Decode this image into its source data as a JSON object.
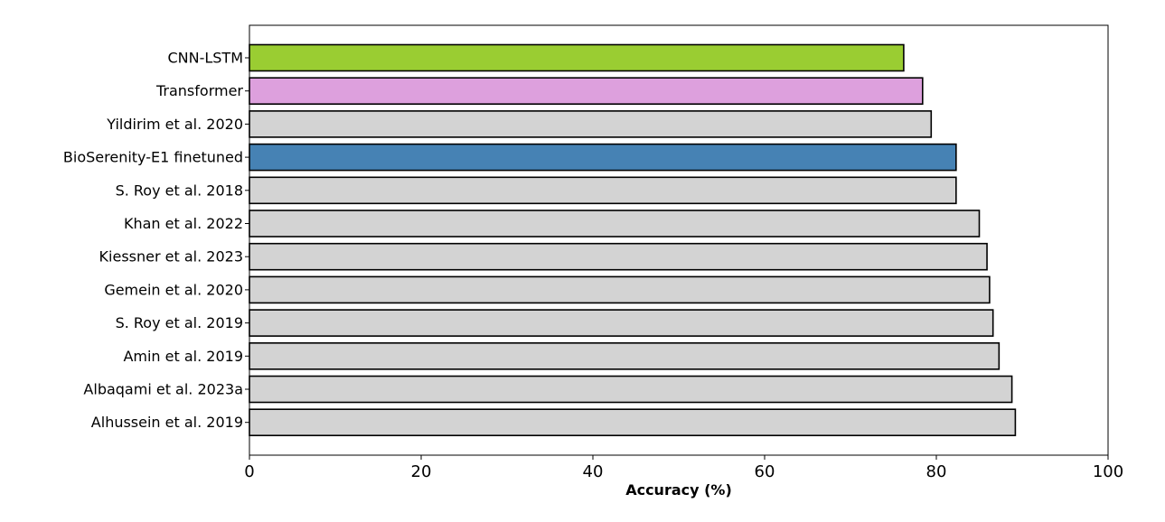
{
  "chart_data": {
    "type": "bar",
    "orientation": "horizontal",
    "title": "",
    "xlabel": "Accuracy (%)",
    "ylabel": "",
    "xlim": [
      0,
      100
    ],
    "x_ticks": [
      0,
      20,
      40,
      60,
      80,
      100
    ],
    "grid": false,
    "legend": "none",
    "categories": [
      "CNN-LSTM",
      "Transformer",
      "Yildirim et al. 2020",
      "BioSerenity-E1 finetuned",
      "S. Roy et al. 2018",
      "Khan et al. 2022",
      "Kiessner et al. 2023",
      "Gemein et al. 2020",
      "S. Roy et al. 2019",
      "Amin et al. 2019",
      "Albaqami et al. 2023a",
      "Alhussein et al. 2019"
    ],
    "values": [
      76.2,
      78.4,
      79.4,
      82.3,
      82.3,
      85.0,
      85.9,
      86.2,
      86.6,
      87.3,
      88.8,
      89.2
    ],
    "bar_colors": [
      "#9acd32",
      "#dda0dd",
      "#d3d3d3",
      "#4682b4",
      "#d3d3d3",
      "#d3d3d3",
      "#d3d3d3",
      "#d3d3d3",
      "#d3d3d3",
      "#d3d3d3",
      "#d3d3d3",
      "#d3d3d3"
    ],
    "bar_edge_color": "#000000"
  }
}
